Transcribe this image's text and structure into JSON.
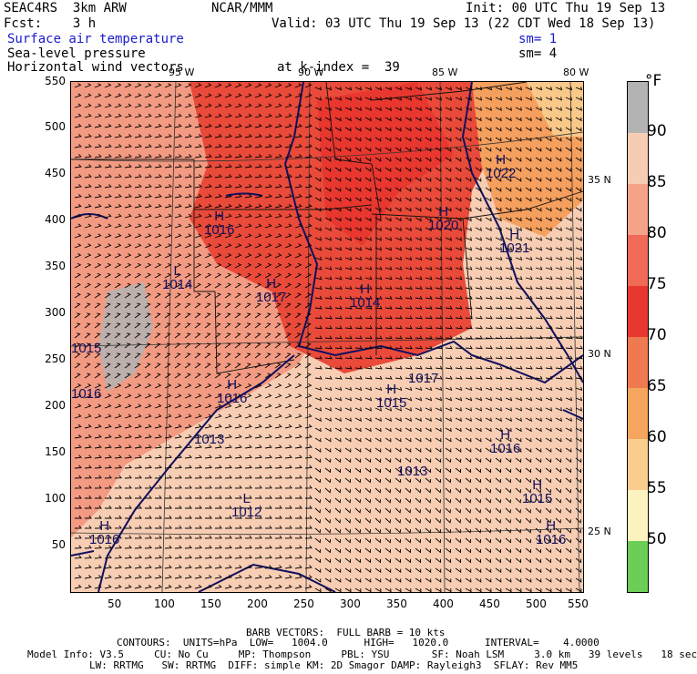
{
  "header": {
    "model": "SEAC4RS  3km ARW",
    "org": "NCAR/MMM",
    "init": "Init: 00 UTC Thu 19 Sep 13",
    "fcst_label": "Fcst:    3 h",
    "valid": "Valid: 03 UTC Thu 19 Sep 13 (22 CDT Wed 18 Sep 13)",
    "field1": "Surface air temperature",
    "field1_sm": "sm= 1",
    "field2": "Sea-level pressure",
    "field2_sm": "sm= 4",
    "field3": "Horizontal wind vectors",
    "level": "at k-index =  39"
  },
  "map": {
    "lon_labels": [
      "95 W",
      "90 W",
      "85 W",
      "80 W"
    ],
    "lat_labels": [
      "35 N",
      "30 N",
      "25 N"
    ],
    "x_ticks": [
      "50",
      "100",
      "150",
      "200",
      "250",
      "300",
      "350",
      "400",
      "450",
      "500",
      "550"
    ],
    "y_ticks": [
      "550",
      "500",
      "450",
      "400",
      "350",
      "300",
      "250",
      "200",
      "150",
      "100",
      "50"
    ],
    "pressure_labels": [
      {
        "sym": "H",
        "val": "1022"
      },
      {
        "sym": "H",
        "val": "1020"
      },
      {
        "sym": "H",
        "val": "1021"
      },
      {
        "sym": "H",
        "val": "1016"
      },
      {
        "sym": "L",
        "val": "1014"
      },
      {
        "sym": "H",
        "val": "1017"
      },
      {
        "sym": "H",
        "val": "1014"
      },
      {
        "sym": "",
        "val": "1015"
      },
      {
        "sym": "H",
        "val": "1016"
      },
      {
        "sym": "",
        "val": "1016"
      },
      {
        "sym": "",
        "val": "1013"
      },
      {
        "sym": "H",
        "val": "1015"
      },
      {
        "sym": "",
        "val": "1013"
      },
      {
        "sym": "H",
        "val": "1016"
      },
      {
        "sym": "H",
        "val": "1015"
      },
      {
        "sym": "L",
        "val": "1012"
      },
      {
        "sym": "H",
        "val": "1016"
      },
      {
        "sym": "H",
        "val": "1016"
      },
      {
        "sym": "",
        "val": "1017"
      }
    ]
  },
  "colorbar": {
    "unit": "°F",
    "labels": [
      "90",
      "85",
      "80",
      "75",
      "70",
      "65",
      "60",
      "55",
      "50"
    ],
    "colors": [
      "#b3b3b3",
      "#f6cdb4",
      "#f5a48a",
      "#ef6a57",
      "#e8372f",
      "#f07a4f",
      "#f5a55d",
      "#f9cd8e",
      "#fdf3c0",
      "#6ccd57"
    ]
  },
  "footer": {
    "barb": "BARB VECTORS:  FULL BARB = 10 kts",
    "contours": "CONTOURS:  UNITS=hPa  LOW=   1004.0      HIGH=   1020.0      INTERVAL=    4.0000",
    "model_info": "Model Info: V3.5     CU: No Cu     MP: Thompson     PBL: YSU       SF: Noah LSM     3.0 km   39 levels   18 sec",
    "model_info2": "LW: RRTMG   SW: RRTMG  DIFF: simple KM: 2D Smagor DAMP: Rayleigh3  SFLAY: Rev MM5"
  }
}
